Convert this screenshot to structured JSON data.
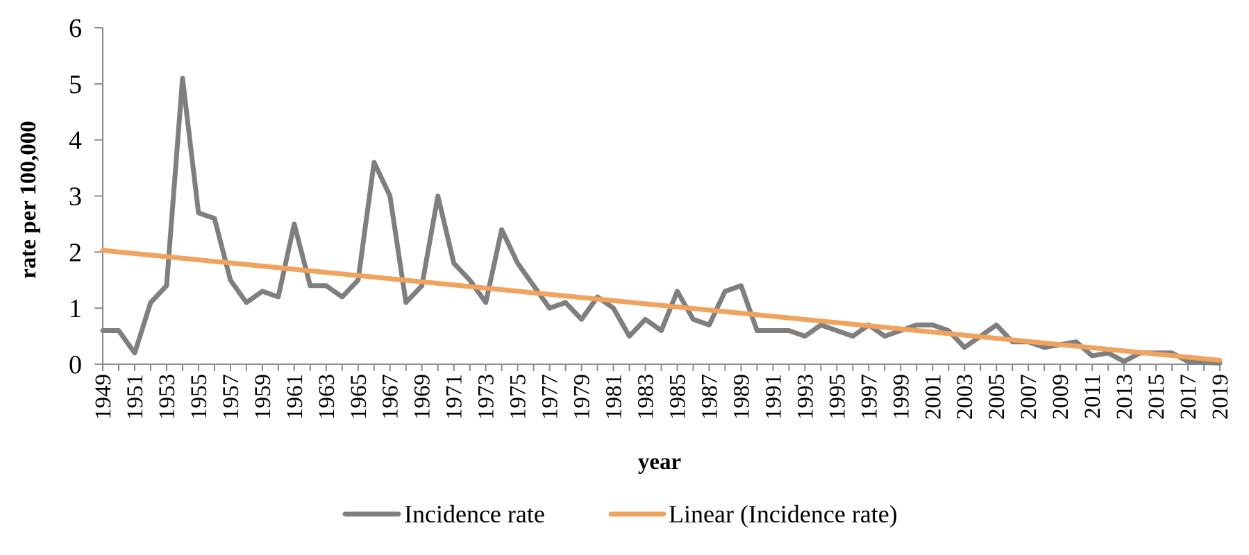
{
  "chart_data": {
    "type": "line",
    "xlabel": "year",
    "ylabel": "rate per 100,000",
    "ylim": [
      0,
      6
    ],
    "yticks": [
      0,
      1,
      2,
      3,
      4,
      5,
      6
    ],
    "x": [
      1949,
      1950,
      1951,
      1952,
      1953,
      1954,
      1955,
      1956,
      1957,
      1958,
      1959,
      1960,
      1961,
      1962,
      1963,
      1964,
      1965,
      1966,
      1967,
      1968,
      1969,
      1970,
      1971,
      1972,
      1973,
      1974,
      1975,
      1976,
      1977,
      1978,
      1979,
      1980,
      1981,
      1982,
      1983,
      1984,
      1985,
      1986,
      1987,
      1988,
      1989,
      1990,
      1991,
      1992,
      1993,
      1994,
      1995,
      1996,
      1997,
      1998,
      1999,
      2000,
      2001,
      2002,
      2003,
      2004,
      2005,
      2006,
      2007,
      2008,
      2009,
      2010,
      2011,
      2012,
      2013,
      2014,
      2015,
      2016,
      2017,
      2018,
      2019
    ],
    "x_tick_labels": [
      "1949",
      "1951",
      "1953",
      "1955",
      "1957",
      "1959",
      "1961",
      "1963",
      "1965",
      "1967",
      "1969",
      "1971",
      "1973",
      "1975",
      "1977",
      "1979",
      "1981",
      "1983",
      "1985",
      "1987",
      "1989",
      "1991",
      "1993",
      "1995",
      "1997",
      "1999",
      "2001",
      "2003",
      "2005",
      "2007",
      "2009",
      "2011",
      "2013",
      "2015",
      "2017",
      "2019"
    ],
    "series": [
      {
        "name": "Incidence rate",
        "color": "#7f7f7f",
        "values": [
          0.6,
          0.6,
          0.2,
          1.1,
          1.4,
          5.1,
          2.7,
          2.6,
          1.5,
          1.1,
          1.3,
          1.2,
          2.5,
          1.4,
          1.4,
          1.2,
          1.5,
          3.6,
          3.0,
          1.1,
          1.4,
          3.0,
          1.8,
          1.5,
          1.1,
          2.4,
          1.8,
          1.4,
          1.0,
          1.1,
          0.8,
          1.2,
          1.0,
          0.5,
          0.8,
          0.6,
          1.3,
          0.8,
          0.7,
          1.3,
          1.4,
          0.6,
          0.6,
          0.6,
          0.5,
          0.7,
          0.6,
          0.5,
          0.7,
          0.5,
          0.6,
          0.7,
          0.7,
          0.6,
          0.3,
          0.5,
          0.7,
          0.4,
          0.4,
          0.3,
          0.35,
          0.4,
          0.15,
          0.2,
          0.05,
          0.2,
          0.2,
          0.2,
          0.05,
          0.03,
          0.02
        ]
      },
      {
        "name": "Linear (Incidence rate)",
        "color": "#f0a35e",
        "type": "trendline",
        "values_at_ends": [
          2.03,
          0.07
        ]
      }
    ],
    "legend": {
      "position": "bottom"
    },
    "grid": false
  }
}
